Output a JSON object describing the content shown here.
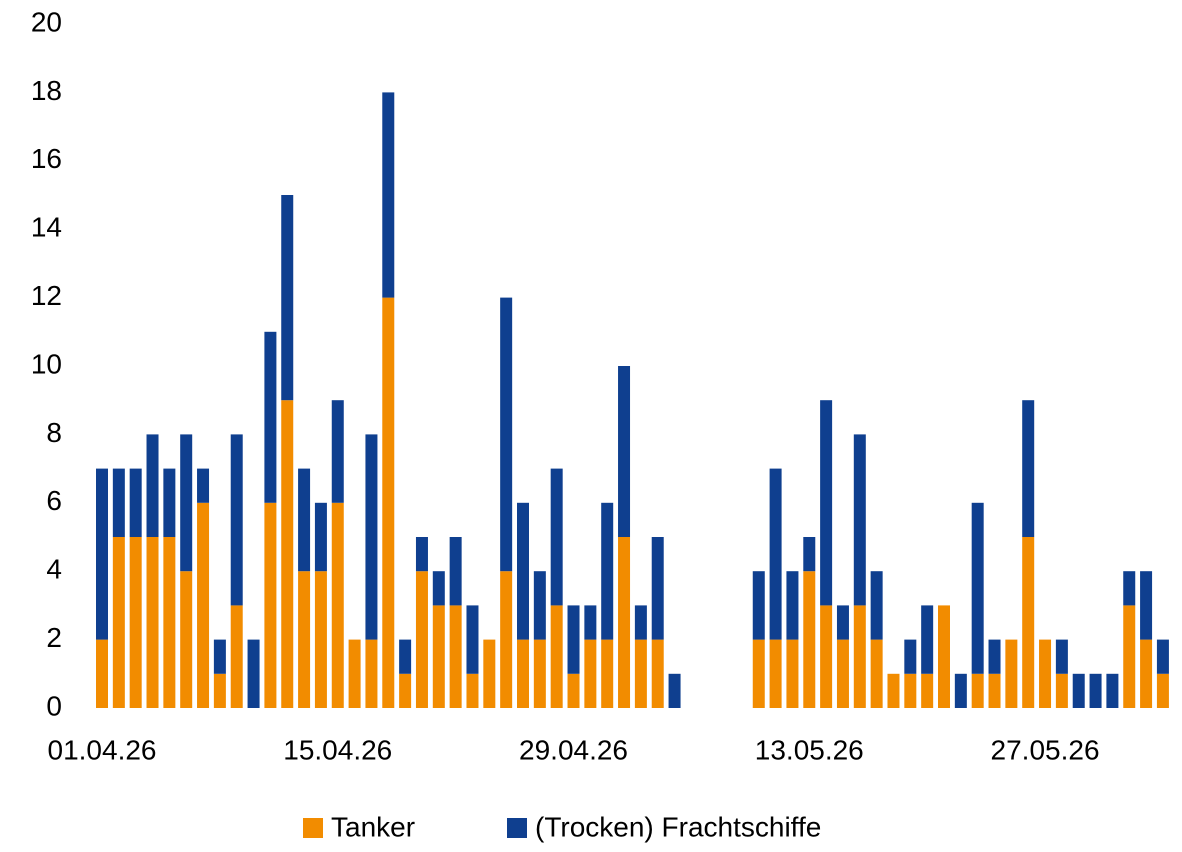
{
  "chart_data": {
    "type": "stacked_bar",
    "categories": [
      "01.04.26",
      null,
      null,
      null,
      null,
      null,
      null,
      null,
      null,
      null,
      null,
      null,
      null,
      null,
      "15.04.26",
      null,
      null,
      null,
      null,
      null,
      null,
      null,
      null,
      null,
      null,
      null,
      null,
      null,
      "29.04.26",
      null,
      null,
      null,
      null,
      null,
      null,
      null,
      null,
      null,
      null,
      null,
      null,
      null,
      "13.05.26",
      null,
      null,
      null,
      null,
      null,
      null,
      null,
      null,
      null,
      null,
      null,
      null,
      null,
      "27.05.26",
      null,
      null,
      null,
      null,
      null,
      null,
      null
    ],
    "series": [
      {
        "name": "Tanker",
        "color": "#f28c00",
        "values": [
          2,
          5,
          5,
          5,
          5,
          4,
          6,
          1,
          3,
          0,
          6,
          9,
          4,
          4,
          6,
          2,
          2,
          12,
          1,
          4,
          3,
          3,
          1,
          2,
          4,
          2,
          2,
          3,
          1,
          2,
          2,
          5,
          2,
          2,
          0,
          null,
          null,
          null,
          null,
          2,
          2,
          2,
          4,
          3,
          2,
          3,
          2,
          1,
          1,
          1,
          3,
          0,
          1,
          1,
          2,
          5,
          2,
          1,
          0,
          0,
          0,
          3,
          2,
          1
        ]
      },
      {
        "name": "(Trocken) Frachtschiffe",
        "color": "#0f3f8f",
        "values": [
          5,
          2,
          2,
          3,
          2,
          4,
          1,
          1,
          5,
          2,
          5,
          6,
          3,
          2,
          3,
          0,
          6,
          6,
          1,
          1,
          1,
          2,
          2,
          0,
          8,
          4,
          2,
          4,
          2,
          1,
          4,
          5,
          1,
          3,
          1,
          null,
          null,
          null,
          null,
          2,
          5,
          2,
          1,
          6,
          1,
          5,
          2,
          0,
          1,
          2,
          0,
          1,
          5,
          1,
          0,
          4,
          0,
          1,
          1,
          1,
          1,
          1,
          2,
          1
        ]
      }
    ],
    "ylim": [
      0,
      20
    ],
    "yticks": [
      0,
      2,
      4,
      6,
      8,
      10,
      12,
      14,
      16,
      18,
      20
    ],
    "grid": false,
    "legend": "bottom"
  }
}
